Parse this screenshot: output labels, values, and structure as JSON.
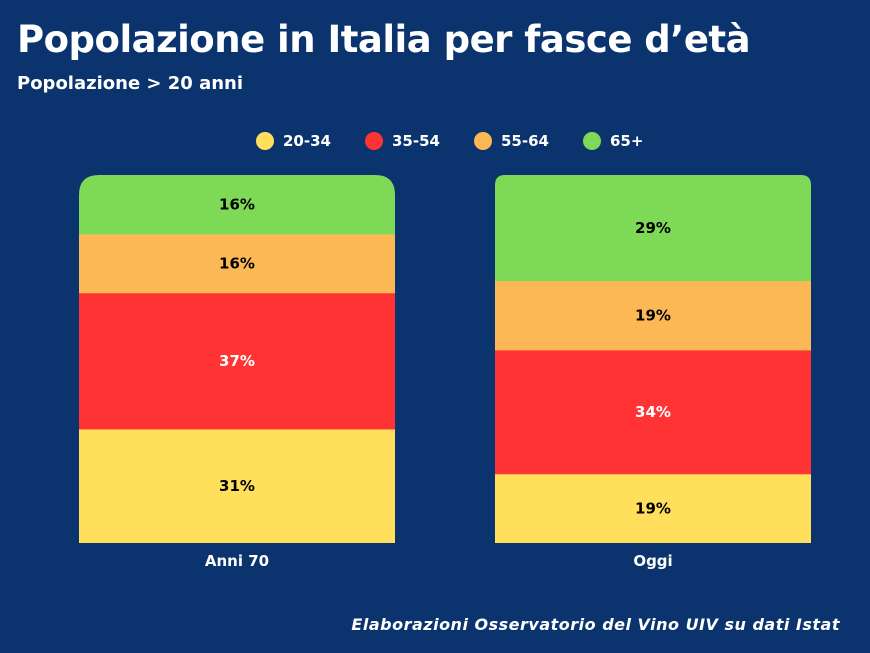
{
  "chart_data": {
    "type": "bar",
    "stacked": true,
    "normalized": true,
    "title": "Popolazione in Italia per fasce d’età",
    "subtitle": "Popolazione > 20 anni",
    "categories": [
      "Anni 70",
      "Oggi"
    ],
    "series": [
      {
        "name": "20-34",
        "color": "#ffdf5b",
        "values": [
          31,
          19
        ]
      },
      {
        "name": "35-54",
        "color": "#ff3333",
        "values": [
          37,
          34
        ]
      },
      {
        "name": "55-64",
        "color": "#fdb856",
        "values": [
          16,
          19
        ]
      },
      {
        "name": "65+",
        "color": "#7ed957",
        "values": [
          16,
          29
        ]
      }
    ],
    "unit": "%",
    "legend_position": "top",
    "grid": false,
    "source": "Elaborazioni Osservatorio del Vino UIV su dati Istat"
  }
}
